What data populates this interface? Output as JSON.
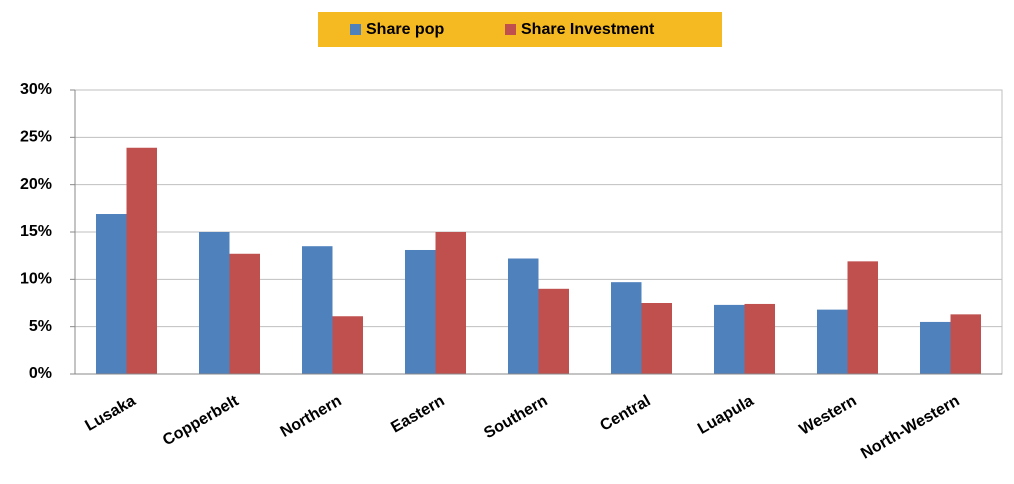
{
  "chart_data": {
    "type": "bar",
    "categories": [
      "Lusaka",
      "Copperbelt",
      "Northern",
      "Eastern",
      "Southern",
      "Central",
      "Luapula",
      "Western",
      "North-Western"
    ],
    "series": [
      {
        "name": "Share pop",
        "color": "#4f81bd",
        "values": [
          16.9,
          15.0,
          13.5,
          13.1,
          12.2,
          9.7,
          7.3,
          6.8,
          5.5
        ]
      },
      {
        "name": "Share Investment",
        "color": "#c0504d",
        "values": [
          23.9,
          12.7,
          6.1,
          15.0,
          9.0,
          7.5,
          7.4,
          11.9,
          6.3
        ]
      }
    ],
    "ylim": [
      0,
      30
    ],
    "yticks": [
      {
        "value": 0,
        "label": "0%"
      },
      {
        "value": 5,
        "label": "5%"
      },
      {
        "value": 10,
        "label": "10%"
      },
      {
        "value": 15,
        "label": "15%"
      },
      {
        "value": 20,
        "label": "20%"
      },
      {
        "value": 25,
        "label": "25%"
      },
      {
        "value": 30,
        "label": "30%"
      }
    ],
    "grid": true,
    "legend": "top"
  }
}
